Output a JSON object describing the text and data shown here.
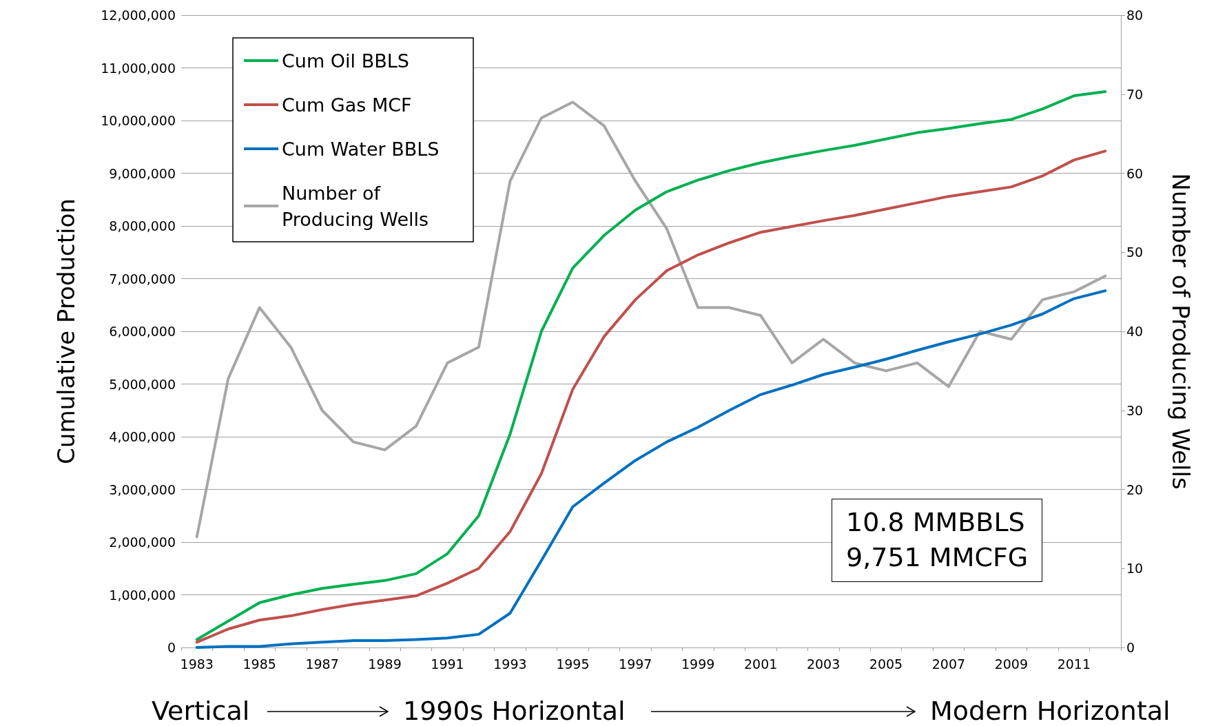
{
  "chart_data": {
    "type": "line",
    "ylabel": "Cumulative Production",
    "y2label": "Number of Producing Wells",
    "categories": [
      "1983",
      null,
      "1985",
      null,
      "1987",
      null,
      "1989",
      null,
      "1991",
      null,
      "1993",
      null,
      "1995",
      null,
      "1997",
      null,
      "1999",
      null,
      "2001",
      null,
      "2003",
      null,
      "2005",
      null,
      "2007",
      null,
      "2009",
      null,
      "2011",
      null
    ],
    "series": [
      {
        "name": "Cum Oil BBLS",
        "color": "#00b050",
        "values": [
          150000,
          500000,
          850000,
          1000000,
          1120000,
          1200000,
          1270000,
          1400000,
          1780000,
          2500000,
          4050000,
          6000000,
          7200000,
          7820000,
          8300000,
          8650000,
          8870000,
          9050000,
          9200000,
          9320000,
          9430000,
          9530000,
          9650000,
          9770000,
          9850000,
          9940000,
          10020000,
          10220000,
          10470000,
          10550000
        ]
      },
      {
        "name": "Cum Gas MCF",
        "color": "#c0504d",
        "values": [
          100000,
          350000,
          520000,
          600000,
          720000,
          820000,
          900000,
          980000,
          1220000,
          1500000,
          2200000,
          3300000,
          4900000,
          5900000,
          6600000,
          7150000,
          7450000,
          7680000,
          7880000,
          7990000,
          8100000,
          8200000,
          8320000,
          8440000,
          8560000,
          8650000,
          8740000,
          8950000,
          9250000,
          9420000
        ]
      },
      {
        "name": "Cum Water BBLS",
        "color": "#0070c0",
        "values": [
          0,
          20000,
          20000,
          70000,
          100000,
          130000,
          130000,
          150000,
          180000,
          250000,
          650000,
          1650000,
          2670000,
          3120000,
          3550000,
          3900000,
          4180000,
          4500000,
          4800000,
          4980000,
          5180000,
          5320000,
          5470000,
          5640000,
          5800000,
          5950000,
          6120000,
          6330000,
          6620000,
          6770000
        ]
      },
      {
        "name": "Number of Producing Wells",
        "color": "#a6a6a6",
        "axis": "y2",
        "values": [
          14,
          34,
          43,
          38,
          30,
          26,
          25,
          28,
          36,
          38,
          59,
          67,
          69,
          66,
          59,
          53,
          43,
          43,
          42,
          36,
          39,
          36,
          35,
          36,
          33,
          40,
          39,
          44,
          45,
          47
        ]
      }
    ],
    "ylim": [
      0,
      12000000
    ],
    "yticks": [
      0,
      {
        "value": 1000000,
        "label": "1,000,000"
      },
      {
        "value": 2000000,
        "label": "2,000,000"
      },
      {
        "value": 3000000,
        "label": "3,000,000"
      },
      {
        "value": 4000000,
        "label": "4,000,000"
      },
      {
        "value": 5000000,
        "label": "5,000,000"
      },
      {
        "value": 6000000,
        "label": "6,000,000"
      },
      {
        "value": 7000000,
        "label": "7,000,000"
      },
      {
        "value": 8000000,
        "label": "8,000,000"
      },
      {
        "value": 9000000,
        "label": "9,000,000"
      },
      {
        "value": 10000000,
        "label": "10,000,000"
      },
      {
        "value": 11000000,
        "label": "11,000,000"
      },
      {
        "value": 12000000,
        "label": "12,000,000"
      }
    ],
    "y2lim": [
      0,
      80
    ],
    "y2ticks": [
      0,
      10,
      20,
      30,
      40,
      50,
      60,
      70,
      80
    ],
    "grid": "y",
    "legend": "top left",
    "marker": "none",
    "line_style": "solid",
    "annotations": [
      "10.8 MMBBLS\n9,751 MMCFG",
      "Vertical",
      "1990s Horizontal",
      "Modern Horizontal"
    ]
  }
}
